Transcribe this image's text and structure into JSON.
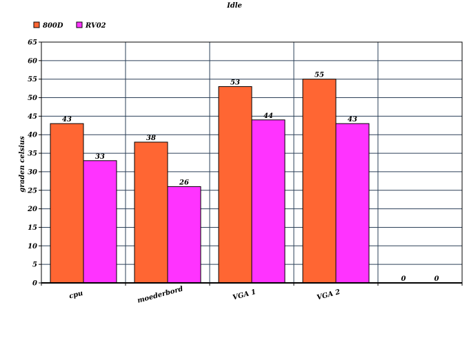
{
  "chart_data": {
    "type": "bar",
    "title": "Idle",
    "xlabel": "",
    "ylabel": "graden celsius",
    "categories": [
      "cpu",
      "moederbord",
      "VGA 1",
      "VGA 2",
      ""
    ],
    "series": [
      {
        "name": "800D",
        "color": "#ff6633",
        "values": [
          43,
          38,
          53,
          55,
          0
        ]
      },
      {
        "name": "RV02",
        "color": "#ff33ff",
        "values": [
          33,
          26,
          44,
          43,
          0
        ]
      }
    ],
    "ylim": [
      0,
      65
    ],
    "ytick_step": 5,
    "grid": true,
    "legend_position": "top-left",
    "data_labels": true
  }
}
